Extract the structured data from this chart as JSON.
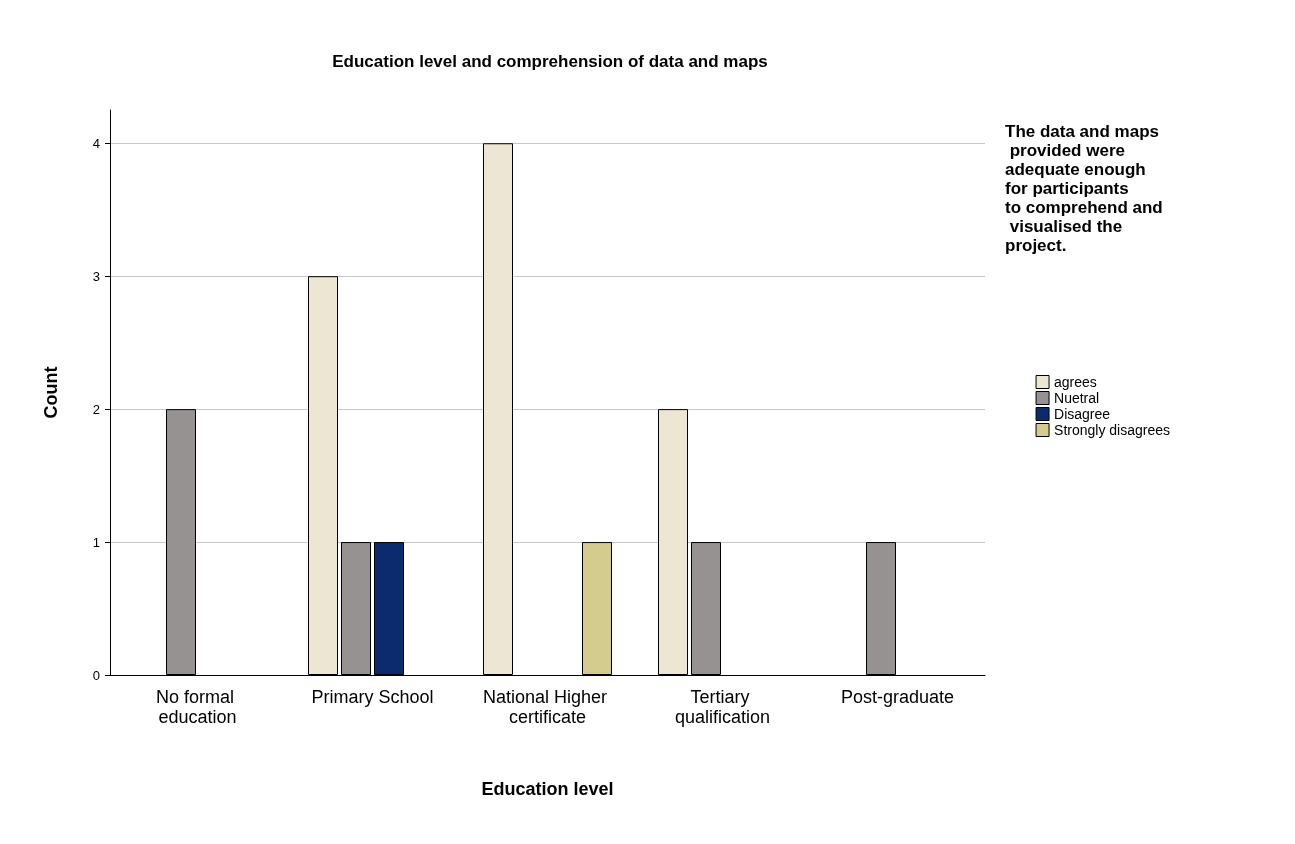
{
  "chart_data": {
    "type": "bar",
    "title": "Education level and comprehension of data and maps",
    "xlabel": "Education level",
    "ylabel": "Count",
    "legend_title": "The data and maps provided were adequate enough for participants to comprehend and visualised the project.",
    "categories": [
      "No formal education",
      "Primary School",
      "National Higher certificate",
      "Tertiary qualification",
      "Post-graduate"
    ],
    "series": [
      {
        "name": "agrees",
        "color": "#ede6d2",
        "values": [
          null,
          3,
          4,
          2,
          null
        ]
      },
      {
        "name": "Nuetral",
        "color": "#969292",
        "values": [
          2,
          1,
          null,
          1,
          1
        ]
      },
      {
        "name": "Disagree",
        "color": "#0c2a6e",
        "values": [
          null,
          1,
          null,
          null,
          null
        ]
      },
      {
        "name": "Strongly disagrees",
        "color": "#d3cc8e",
        "values": [
          null,
          null,
          1,
          null,
          null
        ]
      }
    ],
    "ylim": [
      0,
      4.25
    ],
    "yticks": [
      0,
      1,
      2,
      3,
      4
    ],
    "grid": "y",
    "legend": "right"
  }
}
